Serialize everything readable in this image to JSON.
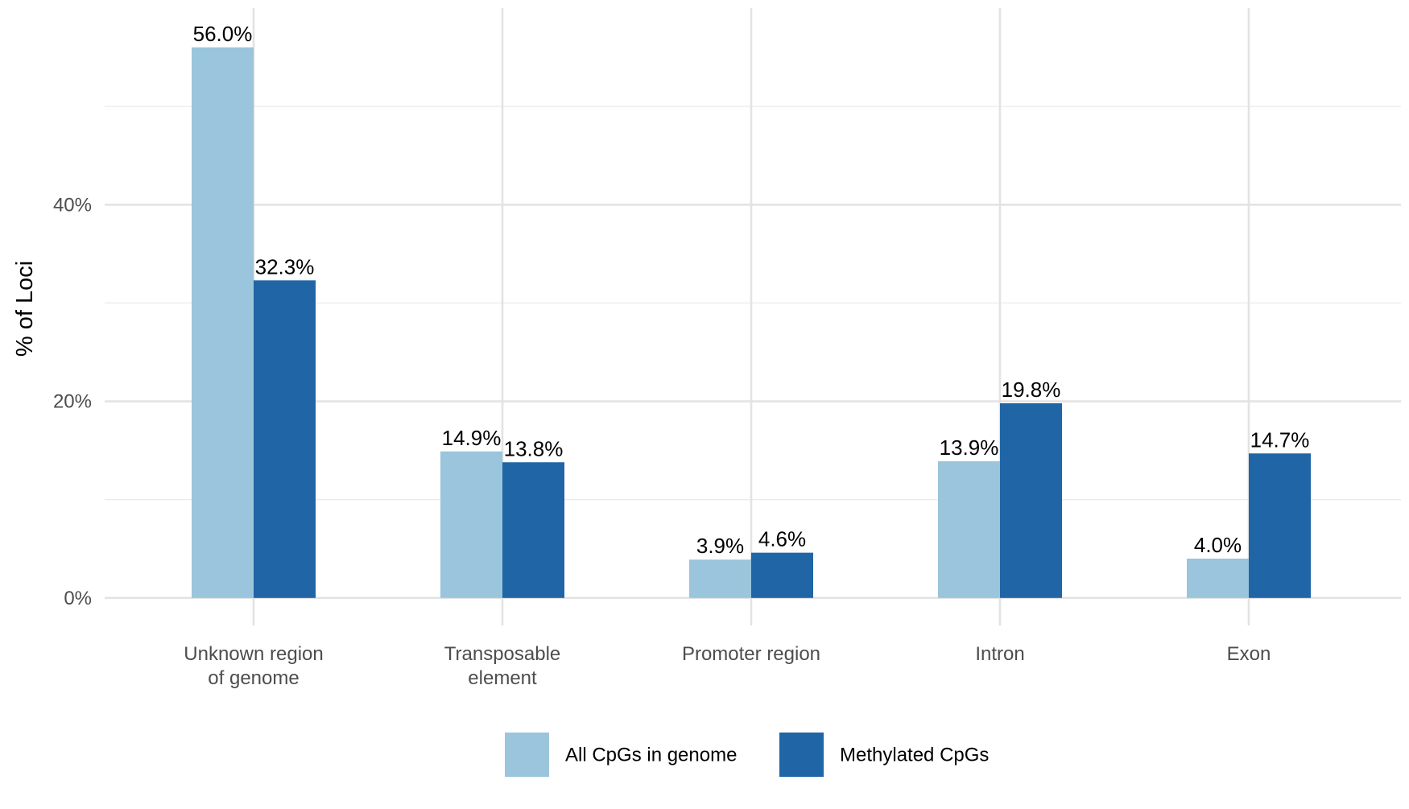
{
  "chart_data": {
    "type": "bar",
    "title": "",
    "xlabel": "",
    "ylabel": "% of Loci",
    "categories": [
      [
        "Unknown region",
        "of genome"
      ],
      [
        "Transposable",
        "element"
      ],
      [
        "Promoter region"
      ],
      [
        "Intron"
      ],
      [
        "Exon"
      ]
    ],
    "series": [
      {
        "name": "All CpGs in genome",
        "color": "#9ac5dc",
        "values": [
          56.0,
          14.9,
          3.9,
          13.9,
          4.0
        ],
        "labels": [
          "56.0%",
          "14.9%",
          "3.9%",
          "13.9%",
          "4.0%"
        ]
      },
      {
        "name": "Methylated CpGs",
        "color": "#2065a6",
        "values": [
          32.3,
          13.8,
          4.6,
          19.8,
          14.7
        ],
        "labels": [
          "32.3%",
          "13.8%",
          "4.6%",
          "19.8%",
          "14.7%"
        ]
      }
    ],
    "ylim": [
      -2.8,
      60
    ],
    "yticks": [
      0,
      20,
      40
    ],
    "ytick_labels": [
      "0%",
      "20%",
      "40%"
    ],
    "grid": true,
    "legend_position": "bottom"
  }
}
